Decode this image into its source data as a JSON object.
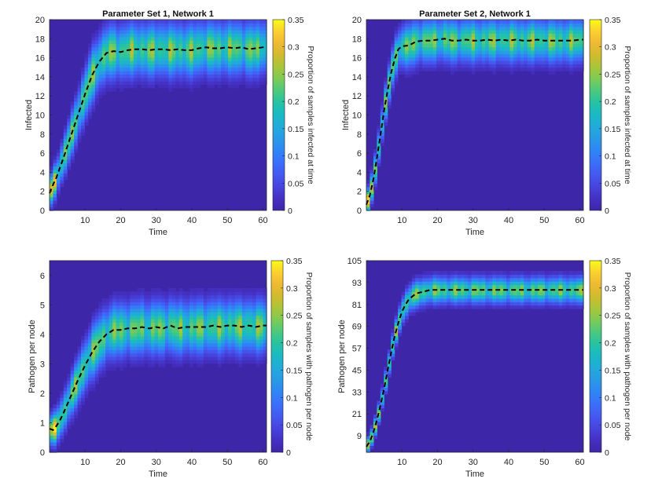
{
  "colormap": [
    "#3e26a8",
    "#4430c2",
    "#4744de",
    "#4459f0",
    "#3b6ffa",
    "#2f85f5",
    "#2999e6",
    "#22aadb",
    "#1ab9c6",
    "#25c2a5",
    "#49c97f",
    "#7bcb57",
    "#a8c53a",
    "#d0bb2e",
    "#eeb933",
    "#fbcf30",
    "#f9fb15"
  ],
  "line_color": "#000000",
  "chart_data": [
    {
      "type": "heatmap",
      "title": "Parameter Set 1, Network 1",
      "xlabel": "Time",
      "ylabel": "Infected",
      "colorbar_label": "Proportion of samples infected at time",
      "xlim": [
        0,
        61
      ],
      "ylim": [
        0,
        20
      ],
      "xticks": [
        10,
        20,
        30,
        40,
        50,
        60
      ],
      "yticks": [
        0,
        2,
        4,
        6,
        8,
        10,
        12,
        14,
        16,
        18,
        20
      ],
      "clim": [
        0,
        0.35
      ],
      "cticks": [
        0,
        0.05,
        0.1,
        0.15,
        0.2,
        0.25,
        0.3,
        0.35
      ],
      "spread": 1.7,
      "mean_x": [
        0,
        1,
        2,
        4,
        6,
        8,
        10,
        12,
        14,
        16,
        18,
        20,
        22,
        24,
        26,
        28,
        30,
        32,
        34,
        36,
        38,
        40,
        42,
        44,
        46,
        48,
        50,
        52,
        54,
        56,
        58,
        60,
        61
      ],
      "mean_y": [
        1.8,
        2.7,
        3.5,
        5.6,
        7.8,
        10.0,
        12.2,
        14.2,
        15.6,
        16.5,
        16.7,
        16.6,
        16.8,
        16.9,
        16.9,
        16.8,
        16.9,
        16.9,
        16.8,
        16.9,
        16.8,
        16.8,
        17.0,
        17.1,
        17.0,
        17.0,
        17.1,
        17.0,
        17.1,
        16.9,
        17.0,
        17.1,
        17.2
      ]
    },
    {
      "type": "heatmap",
      "title": "Parameter Set 2, Network 1",
      "xlabel": "Time",
      "ylabel": "Infected",
      "colorbar_label": "Proportion of samples infected at time",
      "xlim": [
        0,
        61
      ],
      "ylim": [
        0,
        20
      ],
      "xticks": [
        10,
        20,
        30,
        40,
        50,
        60
      ],
      "yticks": [
        0,
        2,
        4,
        6,
        8,
        10,
        12,
        14,
        16,
        18,
        20
      ],
      "clim": [
        0,
        0.35
      ],
      "cticks": [
        0,
        0.05,
        0.1,
        0.15,
        0.2,
        0.25,
        0.3,
        0.35
      ],
      "spread": 1.4,
      "mean_x": [
        0,
        1,
        2,
        3,
        4,
        5,
        6,
        7,
        8,
        9,
        10,
        12,
        14,
        16,
        18,
        20,
        22,
        24,
        26,
        28,
        30,
        32,
        34,
        36,
        38,
        40,
        42,
        44,
        46,
        48,
        50,
        52,
        54,
        56,
        58,
        60,
        61
      ],
      "mean_y": [
        0.6,
        1.6,
        3.3,
        5.6,
        8.0,
        10.5,
        12.6,
        14.5,
        15.9,
        16.9,
        17.2,
        17.3,
        17.7,
        17.8,
        17.8,
        17.9,
        18.0,
        17.8,
        17.8,
        17.9,
        17.8,
        17.8,
        17.9,
        17.8,
        17.9,
        17.8,
        17.9,
        17.8,
        17.8,
        17.9,
        17.8,
        17.8,
        17.8,
        17.8,
        17.8,
        17.9,
        17.9
      ]
    },
    {
      "type": "heatmap",
      "title": "",
      "xlabel": "Time",
      "ylabel": "Pathogen per node",
      "colorbar_label": "Proportion of samples with pathogen per node",
      "xlim": [
        0,
        61
      ],
      "ylim": [
        0,
        6.5
      ],
      "xticks": [
        10,
        20,
        30,
        40,
        50,
        60
      ],
      "yticks": [
        0,
        1,
        2,
        3,
        4,
        5,
        6
      ],
      "clim": [
        0,
        0.35
      ],
      "cticks": [
        0,
        0.05,
        0.1,
        0.15,
        0.2,
        0.25,
        0.3,
        0.35
      ],
      "spread": 0.55,
      "mean_x": [
        0,
        1,
        2,
        3,
        4,
        6,
        8,
        10,
        12,
        14,
        16,
        18,
        20,
        22,
        24,
        26,
        28,
        30,
        32,
        34,
        36,
        38,
        40,
        42,
        44,
        46,
        48,
        50,
        52,
        54,
        56,
        58,
        60,
        61
      ],
      "mean_y": [
        0.8,
        0.75,
        0.9,
        1.1,
        1.35,
        1.9,
        2.45,
        2.95,
        3.4,
        3.75,
        4.0,
        4.15,
        4.15,
        4.2,
        4.2,
        4.25,
        4.2,
        4.25,
        4.2,
        4.3,
        4.2,
        4.25,
        4.25,
        4.25,
        4.25,
        4.3,
        4.25,
        4.3,
        4.3,
        4.25,
        4.3,
        4.25,
        4.3,
        4.3
      ]
    },
    {
      "type": "heatmap",
      "title": "",
      "xlabel": "Time",
      "ylabel": "Pathogen per node",
      "colorbar_label": "Proportion of samples with pathogen per node",
      "xlim": [
        0,
        61
      ],
      "ylim": [
        0,
        105
      ],
      "xticks": [
        10,
        20,
        30,
        40,
        50,
        60
      ],
      "yticks": [
        9,
        21,
        33,
        45,
        57,
        69,
        81,
        93,
        105
      ],
      "clim": [
        0,
        0.35
      ],
      "cticks": [
        0,
        0.05,
        0.1,
        0.15,
        0.2,
        0.25,
        0.3,
        0.35
      ],
      "spread": 4.5,
      "mean_x": [
        0,
        1,
        2,
        3,
        4,
        5,
        6,
        7,
        8,
        9,
        10,
        11,
        12,
        14,
        16,
        18,
        20,
        22,
        24,
        26,
        28,
        30,
        32,
        34,
        36,
        38,
        40,
        42,
        44,
        46,
        48,
        50,
        52,
        54,
        56,
        58,
        60,
        61
      ],
      "mean_y": [
        3,
        6,
        11,
        18,
        26,
        35,
        45,
        55,
        64,
        71,
        77,
        81,
        84,
        87,
        88,
        89,
        89,
        89,
        89,
        89,
        89,
        89,
        89,
        89,
        89,
        89,
        89,
        89,
        89,
        89,
        89,
        89,
        89,
        89,
        89,
        89,
        89,
        89
      ]
    }
  ]
}
